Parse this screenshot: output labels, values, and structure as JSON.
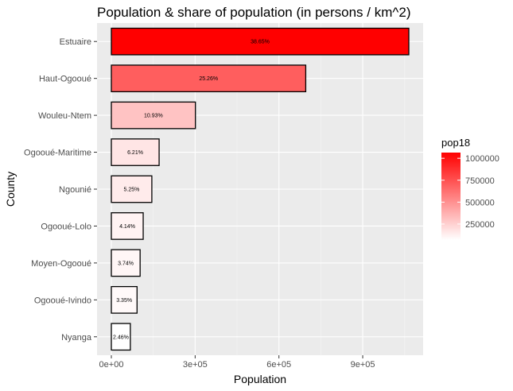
{
  "chart_data": {
    "type": "bar",
    "orientation": "horizontal",
    "title": "Population & share of population (in persons / km^2)",
    "xlabel": "Population",
    "ylabel": "County",
    "xlim": [
      0,
      1120000
    ],
    "xticks": [
      {
        "value": 0,
        "label": "0e+00"
      },
      {
        "value": 300000,
        "label": "3e+05"
      },
      {
        "value": 600000,
        "label": "6e+05"
      },
      {
        "value": 900000,
        "label": "9e+05"
      }
    ],
    "categories": [
      "Estuaire",
      "Haut-Ogooué",
      "Wouleu-Ntem",
      "Ogooué-Maritime",
      "Ngounié",
      "Ogooué-Lolo",
      "Moyen-Ogooué",
      "Ogooué-Ivindo",
      "Nyanga"
    ],
    "values": [
      1065000,
      696000,
      301000,
      171000,
      145000,
      114000,
      103000,
      92000,
      68000
    ],
    "labels": [
      "38.65%",
      "25.26%",
      "10.93%",
      "6.21%",
      "5.25%",
      "4.14%",
      "3.74%",
      "3.35%",
      "2.46%"
    ],
    "grid": true,
    "legend": {
      "title": "pop18",
      "position": "right",
      "type": "colorbar",
      "low_color": "#ffffff",
      "high_color": "#ff0000",
      "min": 68000,
      "max": 1065000,
      "ticks": [
        {
          "value": 250000,
          "label": "250000"
        },
        {
          "value": 500000,
          "label": "500000"
        },
        {
          "value": 750000,
          "label": "750000"
        },
        {
          "value": 1000000,
          "label": "1000000"
        }
      ]
    },
    "colors": {
      "panel_background": "#ebebeb",
      "grid_major": "#ffffff",
      "grid_minor": "#f5f5f5",
      "bar_outline": "#000000"
    }
  }
}
